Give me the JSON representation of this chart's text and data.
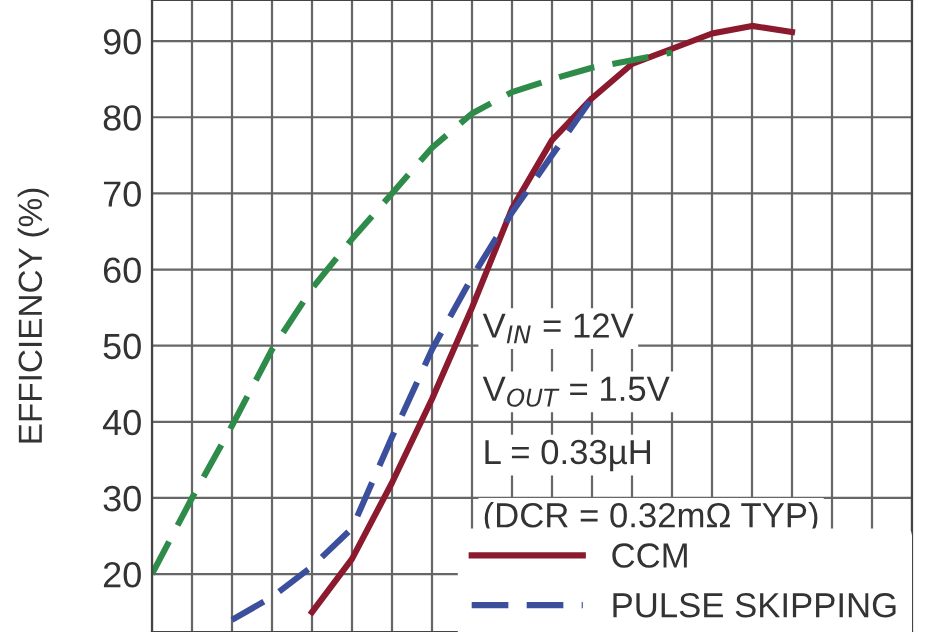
{
  "chart_data": {
    "type": "line",
    "ylabel": "EFFICIENCY (%)",
    "categories": [
      null,
      null,
      null,
      null,
      null,
      null,
      null,
      null,
      null,
      null,
      null,
      null,
      null,
      null,
      null,
      null,
      null,
      null,
      null,
      null
    ],
    "series": [
      {
        "name": "CCM",
        "color": "#8b1a2e",
        "line_style": "solid",
        "values": [
          null,
          null,
          null,
          null,
          15,
          22,
          32,
          43,
          55,
          68,
          77,
          82.5,
          87,
          89,
          91,
          92,
          91.2,
          null,
          null,
          null
        ]
      },
      {
        "name": "PULSE SKIPPING",
        "color": "#3b4f9c",
        "line_style": "dashed",
        "values": [
          null,
          null,
          14,
          17,
          21,
          26,
          38,
          49.5,
          59,
          67.5,
          75,
          82.5,
          null,
          null,
          null,
          null,
          null,
          null,
          null,
          null
        ]
      },
      {
        "color": "#2e8b4a",
        "line_style": "dashed",
        "values": [
          20,
          30,
          39.5,
          49.5,
          57.5,
          64,
          70,
          76,
          80.5,
          83.3,
          85,
          86.5,
          87.5,
          88.5,
          null,
          null,
          null,
          null,
          null,
          null
        ]
      }
    ],
    "ylim": [
      12.4,
      95.4
    ],
    "yticks": [
      20,
      30,
      40,
      50,
      60,
      70,
      80,
      90
    ],
    "tick_labels": "y",
    "grid": true,
    "legend": "bottom right",
    "annotations": [
      "V$_{IN}$ = 12V",
      "V$_{OUT}$ = 1.5V",
      "L = 0.33µH",
      "(DCR = 0.32mΩ TYP)"
    ]
  }
}
